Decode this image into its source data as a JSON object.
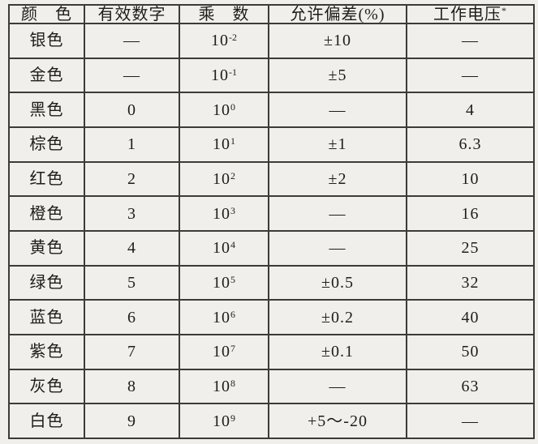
{
  "page": {
    "background_color": "#f1efeb",
    "line_color": "#3c3b39",
    "text_color": "#1e1d1b",
    "description": "扫描书页表格：电阻色环代码表"
  },
  "table": {
    "columns": [
      "颜　色",
      "有效数字",
      "乘　数",
      "允许偏差(%)",
      "工作电压"
    ],
    "voltage_note_mark": "*",
    "rows": [
      {
        "color": "银色",
        "digit": "—",
        "mult_base": "10",
        "mult_exp": "-2",
        "tolerance": "±10",
        "voltage": "—"
      },
      {
        "color": "金色",
        "digit": "—",
        "mult_base": "10",
        "mult_exp": "-1",
        "tolerance": "±5",
        "voltage": "—"
      },
      {
        "color": "黑色",
        "digit": "0",
        "mult_base": "10",
        "mult_exp": "0",
        "tolerance": "—",
        "voltage": "4"
      },
      {
        "color": "棕色",
        "digit": "1",
        "mult_base": "10",
        "mult_exp": "1",
        "tolerance": "±1",
        "voltage": "6.3"
      },
      {
        "color": "红色",
        "digit": "2",
        "mult_base": "10",
        "mult_exp": "2",
        "tolerance": "±2",
        "voltage": "10"
      },
      {
        "color": "橙色",
        "digit": "3",
        "mult_base": "10",
        "mult_exp": "3",
        "tolerance": "—",
        "voltage": "16"
      },
      {
        "color": "黄色",
        "digit": "4",
        "mult_base": "10",
        "mult_exp": "4",
        "tolerance": "—",
        "voltage": "25"
      },
      {
        "color": "绿色",
        "digit": "5",
        "mult_base": "10",
        "mult_exp": "5",
        "tolerance": "±0.5",
        "voltage": "32"
      },
      {
        "color": "蓝色",
        "digit": "6",
        "mult_base": "10",
        "mult_exp": "6",
        "tolerance": "±0.2",
        "voltage": "40"
      },
      {
        "color": "紫色",
        "digit": "7",
        "mult_base": "10",
        "mult_exp": "7",
        "tolerance": "±0.1",
        "voltage": "50"
      },
      {
        "color": "灰色",
        "digit": "8",
        "mult_base": "10",
        "mult_exp": "8",
        "tolerance": "—",
        "voltage": "63"
      },
      {
        "color": "白色",
        "digit": "9",
        "mult_base": "10",
        "mult_exp": "9",
        "tolerance": "+5～-20",
        "voltage": "—"
      }
    ]
  }
}
